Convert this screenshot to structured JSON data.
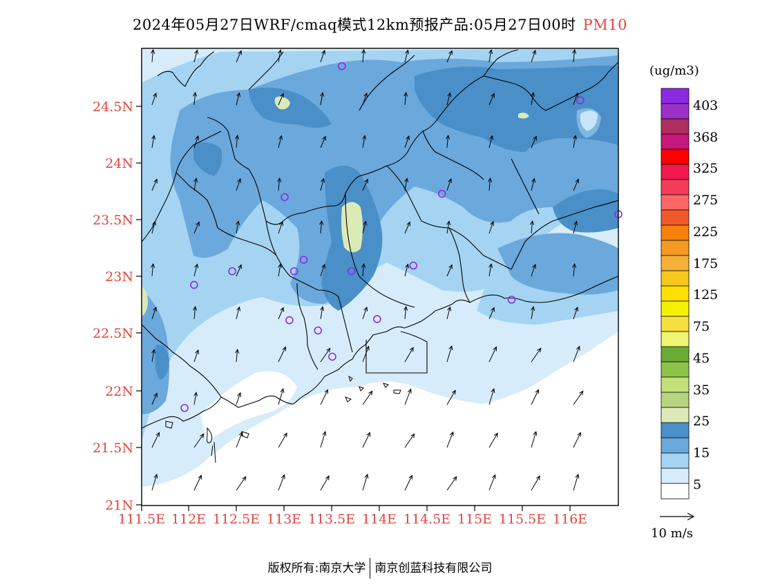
{
  "title": {
    "text": "2024年05月27日WRF/cmaq模式12km预报产品:05月27日00时",
    "pollutant": "PM10"
  },
  "map": {
    "lat_labels": [
      "24.5N",
      "24N",
      "23.5N",
      "23N",
      "22.5N",
      "22N",
      "21.5N",
      "21N"
    ],
    "lon_labels": [
      "111.5E",
      "112E",
      "112.5E",
      "113E",
      "113.5E",
      "114E",
      "114.5E",
      "115E",
      "115.5E",
      "116E"
    ],
    "land_color": "#000000"
  },
  "legend": {
    "unit": "(ug/m3)",
    "levels": [
      "403",
      "368",
      "325",
      "275",
      "225",
      "175",
      "125",
      "75",
      "45",
      "35",
      "25",
      "15",
      "5"
    ],
    "colors_top_to_bottom": [
      "#8a2be2",
      "#9b30c8",
      "#ae2f5e",
      "#c7177a",
      "#ff0000",
      "#f0194d",
      "#f43c5a",
      "#ff6666",
      "#f05a2b",
      "#f5820a",
      "#f59a22",
      "#f5b03a",
      "#f5c81e",
      "#ffe000",
      "#f5f000",
      "#f5e040",
      "#eef570",
      "#6aaa35",
      "#8cc44a",
      "#c3e07a",
      "#b7d480",
      "#dceab8",
      "#4a8fc8",
      "#6ba8dc",
      "#a4d4f2",
      "#d7ecfa",
      "#ffffff"
    ]
  },
  "wind_scale": {
    "label": "10 m/s"
  },
  "stations": [
    {
      "lon": 113.6,
      "lat": 24.85
    },
    {
      "lon": 116.1,
      "lat": 24.55
    },
    {
      "lon": 113.0,
      "lat": 23.7
    },
    {
      "lon": 114.65,
      "lat": 23.73
    },
    {
      "lon": 116.5,
      "lat": 23.55
    },
    {
      "lon": 112.45,
      "lat": 23.05
    },
    {
      "lon": 113.1,
      "lat": 23.05
    },
    {
      "lon": 113.2,
      "lat": 23.15
    },
    {
      "lon": 113.7,
      "lat": 23.05
    },
    {
      "lon": 114.35,
      "lat": 23.1
    },
    {
      "lon": 112.05,
      "lat": 22.93
    },
    {
      "lon": 115.38,
      "lat": 22.8
    },
    {
      "lon": 113.05,
      "lat": 22.62
    },
    {
      "lon": 113.35,
      "lat": 22.53
    },
    {
      "lon": 113.97,
      "lat": 22.63
    },
    {
      "lon": 113.5,
      "lat": 22.3
    },
    {
      "lon": 111.95,
      "lat": 21.85
    }
  ],
  "footer": {
    "left": "版权所有:南京大学",
    "right": "南京创蓝科技有限公司"
  }
}
